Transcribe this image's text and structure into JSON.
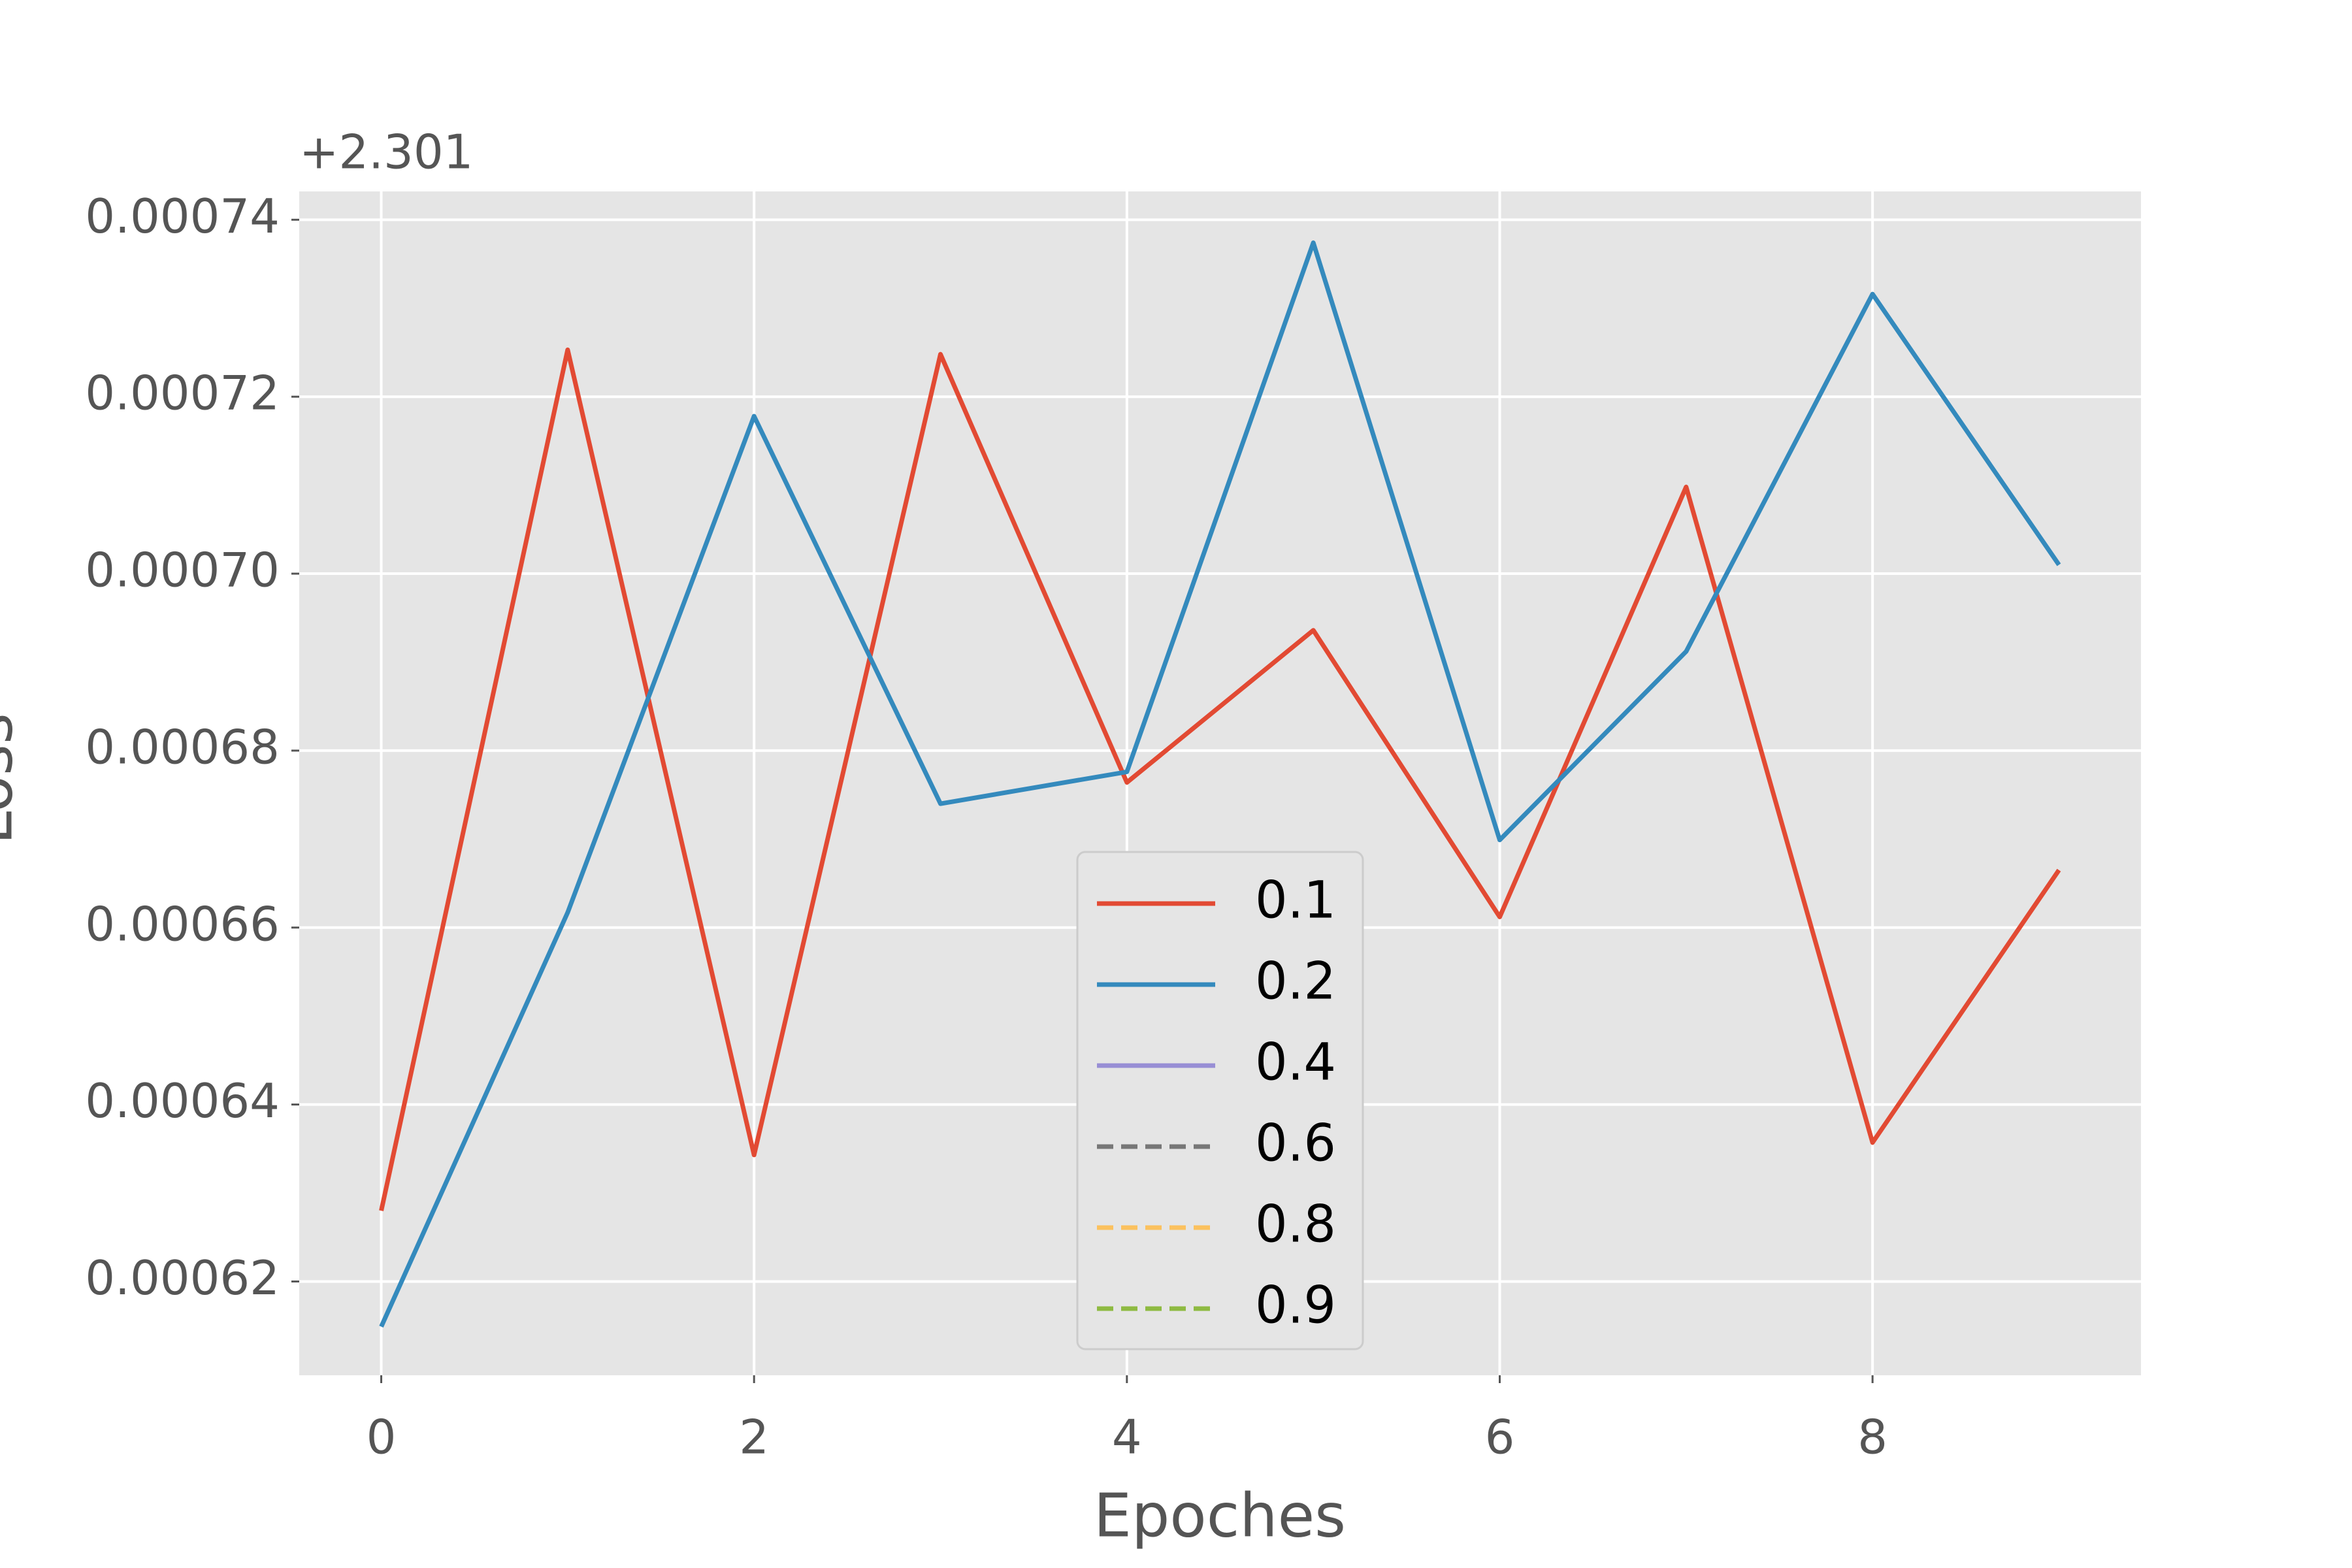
{
  "chart_data": {
    "type": "line",
    "xlabel": "Epoches",
    "ylabel": "Loss",
    "offset_text": "+2.301",
    "x": [
      0,
      1,
      2,
      3,
      4,
      5,
      6,
      7,
      8,
      9
    ],
    "series": [
      {
        "name": "0.1",
        "color": "#e24a33",
        "dashed": false,
        "values": [
          0.000628,
          0.0007253,
          0.0006343,
          0.0007248,
          0.0006764,
          0.0006936,
          0.0006612,
          0.0007098,
          0.0006357,
          0.0006665
        ]
      },
      {
        "name": "0.2",
        "color": "#348abd",
        "dashed": false,
        "values": [
          0.0006149,
          0.0006617,
          0.0007178,
          0.000674,
          0.0006776,
          0.0007374,
          0.0006699,
          0.0006912,
          0.0007316,
          0.000701
        ]
      },
      {
        "name": "0.4",
        "color": "#988ed5",
        "dashed": false,
        "values": [
          null,
          null,
          null,
          null,
          null,
          null,
          null,
          null,
          null,
          null
        ]
      },
      {
        "name": "0.6",
        "color": "#777777",
        "dashed": true,
        "values": [
          null,
          null,
          null,
          null,
          null,
          null,
          null,
          null,
          null,
          null
        ]
      },
      {
        "name": "0.8",
        "color": "#fbc15e",
        "dashed": true,
        "values": [
          null,
          null,
          null,
          null,
          null,
          null,
          null,
          null,
          null,
          null
        ]
      },
      {
        "name": "0.9",
        "color": "#8eba42",
        "dashed": true,
        "values": [
          null,
          null,
          null,
          null,
          null,
          null,
          null,
          null,
          null,
          null
        ]
      }
    ],
    "xlim": [
      -0.44,
      9.44
    ],
    "ylim": [
      0.0006094,
      0.0007432
    ],
    "xticks": [
      0,
      2,
      4,
      6,
      8
    ],
    "yticks": [
      {
        "value": 0.00062,
        "label": "0.00062"
      },
      {
        "value": 0.00064,
        "label": "0.00064"
      },
      {
        "value": 0.00066,
        "label": "0.00066"
      },
      {
        "value": 0.00068,
        "label": "0.00068"
      },
      {
        "value": 0.0007,
        "label": "0.00070"
      },
      {
        "value": 0.00072,
        "label": "0.00072"
      },
      {
        "value": 0.00074,
        "label": "0.00074"
      }
    ],
    "grid": true,
    "legend": "lower center"
  }
}
